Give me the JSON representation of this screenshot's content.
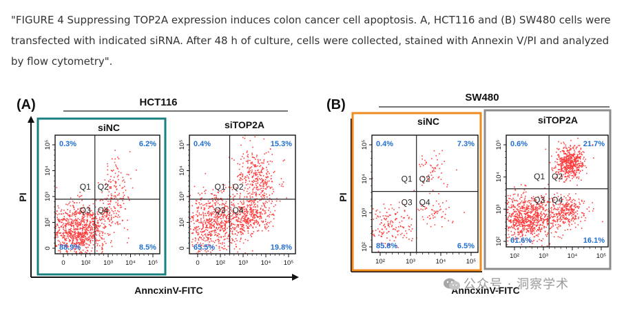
{
  "caption": "\"FIGURE 4 Suppressing TOP2A expression induces colon cancer cell apoptosis. A, HCT116 and (B) SW480 cells were transfected with indicated siRNA. After 48 h of culture, cells were collected, stained with Annexin V/PI and analyzed by flow cytometry\".",
  "watermark": {
    "text": "公众号 · 洞察学术",
    "icon": "wechat-icon"
  },
  "colors": {
    "siNC_frame_A": "#1a7f7f",
    "siNC_frame_B": "#ee8a1e",
    "siTOP2A_frame_B": "#8c8c8c",
    "dots": "#ff1a1a",
    "quadrant_label": "#1f6ed4"
  },
  "panels": [
    {
      "id": "A",
      "label": "(A)",
      "cell_line": "HCT116",
      "y_axis_label": "PI",
      "x_axis_label": "AnncxinV-FITC",
      "plots": [
        {
          "title": "siNC",
          "quadrants": [
            "Q1",
            "Q2",
            "Q3",
            "Q4"
          ],
          "percentages": {
            "q1": "0.3%",
            "q2": "6.2%",
            "q3": "88.9%",
            "q4": "8.5%"
          },
          "y_ticks": [
            "10⁵",
            "10⁴",
            "10³",
            "10²",
            "0"
          ],
          "x_ticks": [
            "0",
            "10²",
            "10³",
            "10⁴",
            "10⁵"
          ]
        },
        {
          "title": "siTOP2A",
          "quadrants": [
            "Q1",
            "Q2",
            "Q3",
            "Q4"
          ],
          "percentages": {
            "q1": "0.4%",
            "q2": "15.3%",
            "q3": "65.5%",
            "q4": "19.8%"
          },
          "y_ticks": [
            "10⁵",
            "10⁴",
            "10³",
            "10²",
            "0"
          ],
          "x_ticks": [
            "0",
            "10²",
            "10³",
            "10⁴",
            "10⁵"
          ]
        }
      ]
    },
    {
      "id": "B",
      "label": "(B)",
      "cell_line": "SW480",
      "y_axis_label": "PI",
      "x_axis_label": "AnncxinV-FITC",
      "plots": [
        {
          "title": "siNC",
          "quadrants": [
            "Q1",
            "Q2",
            "Q3",
            "Q4"
          ],
          "percentages": {
            "q1": "0.4%",
            "q2": "7.3%",
            "q3": "85.8%",
            "q4": "6.5%"
          },
          "y_ticks": [
            "10⁵",
            "10⁴",
            "10³",
            "10²"
          ],
          "x_ticks": [
            "10²",
            "10³",
            "10⁴",
            "10⁵"
          ]
        },
        {
          "title": "siTOP2A",
          "quadrants": [
            "Q1",
            "Q2",
            "Q3",
            "Q4"
          ],
          "percentages": {
            "q1": "0.6%",
            "q2": "21.7%",
            "q3": "61.6%",
            "q4": "16.1%"
          },
          "y_ticks": [
            "10⁵",
            "10⁴",
            "10³",
            "10²"
          ],
          "x_ticks": [
            "10²",
            "10³",
            "10⁴",
            "10⁵"
          ]
        }
      ]
    }
  ]
}
